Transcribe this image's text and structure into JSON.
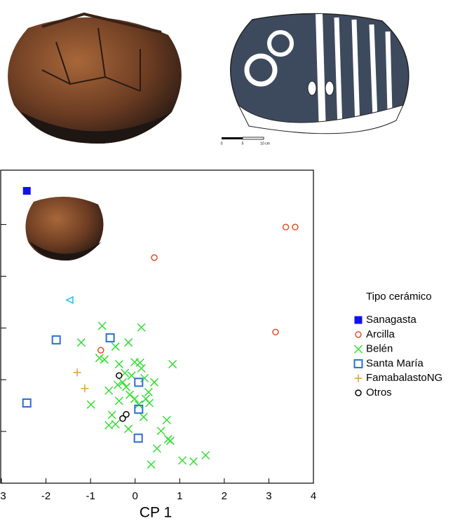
{
  "chart_data": {
    "type": "scatter",
    "xlabel": "CP 1",
    "legend_title": "Tipo cerámico",
    "legend": "right",
    "xlim": [
      -3,
      4
    ],
    "xticks": [
      -3,
      -2,
      -1,
      0,
      1,
      2,
      3,
      4
    ],
    "ylim": [
      -3,
      3.05
    ],
    "yticks": [
      -2,
      -1,
      0,
      1,
      2
    ],
    "scale_bar": [
      "0",
      "5",
      "10 cm"
    ],
    "series": [
      {
        "name": "Sanagasta",
        "color": "#1010f0",
        "marker": "filled-square",
        "x": [
          -2.43
        ],
        "y": [
          2.65
        ]
      },
      {
        "name": "Arcilla",
        "color": "#e0502a",
        "marker": "circle",
        "x": [
          3.38,
          3.59,
          0.43,
          3.15,
          -0.77
        ],
        "y": [
          1.95,
          1.95,
          1.36,
          -0.08,
          -0.43
        ]
      },
      {
        "name": "Belén",
        "color": "#33dd33",
        "marker": "cross",
        "x": [
          -0.74,
          0.14,
          -1.21,
          -0.8,
          -0.69,
          -0.44,
          -0.15,
          0.84,
          -0.36,
          -0.01,
          0.14,
          -0.23,
          -0.08,
          -0.28,
          -0.39,
          -0.2,
          0.21,
          0.3,
          0.24,
          -0.12,
          -0.01,
          -0.59,
          0.32,
          -0.99,
          0.19,
          -0.52,
          -0.44,
          -0.59,
          -0.15,
          0.71,
          0.58,
          0.74,
          0.79,
          0.49,
          1.06,
          1.31,
          1.58,
          0.36,
          0.08,
          -0.36,
          0.43,
          0.11
        ],
        "y": [
          0.04,
          0.01,
          -0.28,
          -0.58,
          -0.61,
          -0.36,
          -0.28,
          -0.7,
          -0.7,
          -0.66,
          -0.78,
          -0.87,
          -0.92,
          -1.05,
          -1.1,
          -1.14,
          -0.97,
          -1.24,
          -1.37,
          -1.29,
          -1.37,
          -1.21,
          -1.45,
          -1.48,
          -1.72,
          -1.68,
          -1.86,
          -1.88,
          -1.95,
          -1.78,
          -1.99,
          -2.15,
          -2.18,
          -2.33,
          -2.56,
          -2.58,
          -2.46,
          -2.64,
          -1.48,
          -1.41,
          -1.05,
          -0.67
        ]
      },
      {
        "name": "Santa María",
        "color": "#2a6fd0",
        "marker": "square",
        "x": [
          -1.77,
          -0.56,
          0.08,
          0.08,
          0.07,
          -2.43
        ],
        "y": [
          -0.23,
          -0.19,
          -1.05,
          -1.57,
          -2.13,
          -1.45
        ]
      },
      {
        "name": "FamabalastoNG",
        "color": "#e0a030",
        "marker": "plus",
        "x": [
          -1.3,
          -1.13
        ],
        "y": [
          -0.86,
          -1.17
        ]
      },
      {
        "name": "Otros",
        "color": "#000000",
        "marker": "circle",
        "x": [
          -0.36,
          -0.28,
          -0.2
        ],
        "y": [
          -0.92,
          -1.75,
          -1.67
        ]
      },
      {
        "color": "#22c0e0",
        "marker": "triangle",
        "x": [
          -1.46
        ],
        "y": [
          0.54
        ]
      }
    ]
  }
}
